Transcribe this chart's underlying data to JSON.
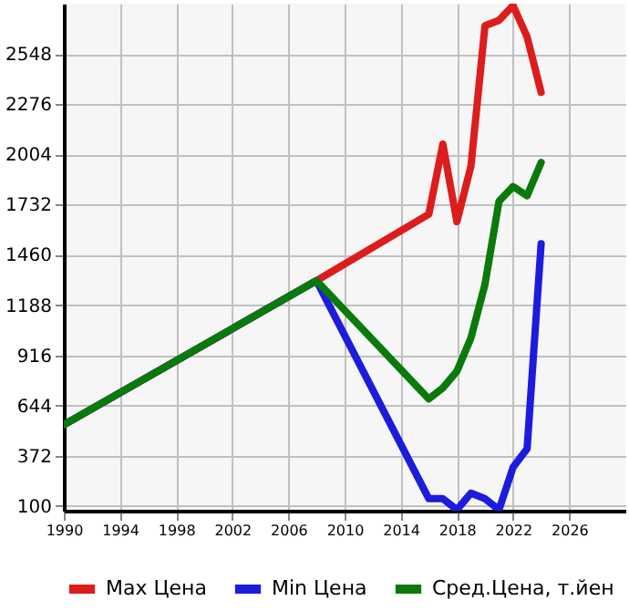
{
  "chart_data": {
    "type": "line",
    "xlim": [
      1990,
      2030
    ],
    "xticks": [
      1990,
      1994,
      1998,
      2002,
      2006,
      2010,
      2014,
      2018,
      2022,
      2026
    ],
    "ylim": [
      75,
      2820
    ],
    "yticks": [
      100,
      372,
      644,
      916,
      1188,
      1460,
      1732,
      2004,
      2276,
      2548
    ],
    "grid": true,
    "legend": "bottom",
    "line_style": "solid",
    "marker": "none",
    "series": [
      {
        "name": "Max Цена",
        "color": "#dd1c1c",
        "x": [
          1990,
          2008,
          2016,
          2017,
          2018,
          2019,
          2020,
          2021,
          2022,
          2023,
          2024
        ],
        "values": [
          540,
          1320,
          1680,
          2060,
          1640,
          1940,
          2700,
          2730,
          2810,
          2640,
          2340
        ]
      },
      {
        "name": "Min Цена",
        "color": "#1c1cdd",
        "x": [
          1990,
          2008,
          2016,
          2017,
          2018,
          2019,
          2020,
          2021,
          2022,
          2023,
          2024
        ],
        "values": [
          540,
          1320,
          140,
          140,
          80,
          170,
          140,
          80,
          310,
          410,
          1520
        ]
      },
      {
        "name": "Сред.Цена, т.йен",
        "color": "#0a7a0a",
        "x": [
          1990,
          2008,
          2016,
          2017,
          2018,
          2019,
          2020,
          2021,
          2022,
          2023,
          2024
        ],
        "values": [
          540,
          1320,
          680,
          740,
          830,
          1010,
          1300,
          1750,
          1830,
          1780,
          1960
        ]
      }
    ]
  }
}
